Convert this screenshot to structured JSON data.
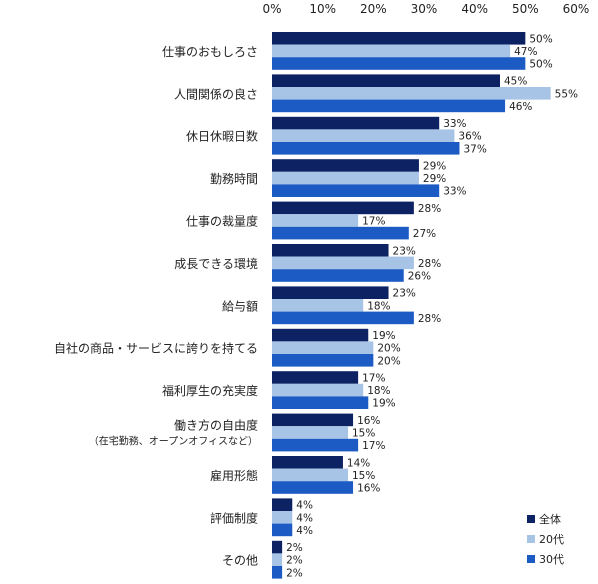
{
  "chart_data": {
    "type": "bar",
    "orientation": "horizontal",
    "categories": [
      "仕事のおもしろさ",
      "人間関係の良さ",
      "休日休暇日数",
      "勤務時間",
      "仕事の裁量度",
      "成長できる環境",
      "給与額",
      "自社の商品・サービスに誇りを持てる",
      "福利厚生の充実度",
      "働き方の自由度",
      "雇用形態",
      "評価制度",
      "その他"
    ],
    "category_sublabels": [
      "",
      "",
      "",
      "",
      "",
      "",
      "",
      "",
      "",
      "（在宅勤務、オープンオフィスなど）",
      "",
      "",
      ""
    ],
    "series": [
      {
        "name": "全体",
        "color": "#0d2263",
        "values": [
          50,
          45,
          33,
          29,
          28,
          23,
          23,
          19,
          17,
          16,
          14,
          4,
          2
        ]
      },
      {
        "name": "20代",
        "color": "#a7c3e6",
        "values": [
          47,
          55,
          36,
          29,
          17,
          28,
          18,
          20,
          18,
          15,
          15,
          4,
          2
        ]
      },
      {
        "name": "30代",
        "color": "#1c5bc4",
        "values": [
          50,
          46,
          37,
          33,
          27,
          26,
          28,
          20,
          19,
          17,
          16,
          4,
          2
        ]
      }
    ],
    "xlim": [
      0,
      60
    ],
    "xticks": [
      0,
      10,
      20,
      30,
      40,
      50,
      60
    ],
    "tick_suffix": "%",
    "value_suffix": "%",
    "grid": false,
    "legend_position": "bottom-right"
  }
}
